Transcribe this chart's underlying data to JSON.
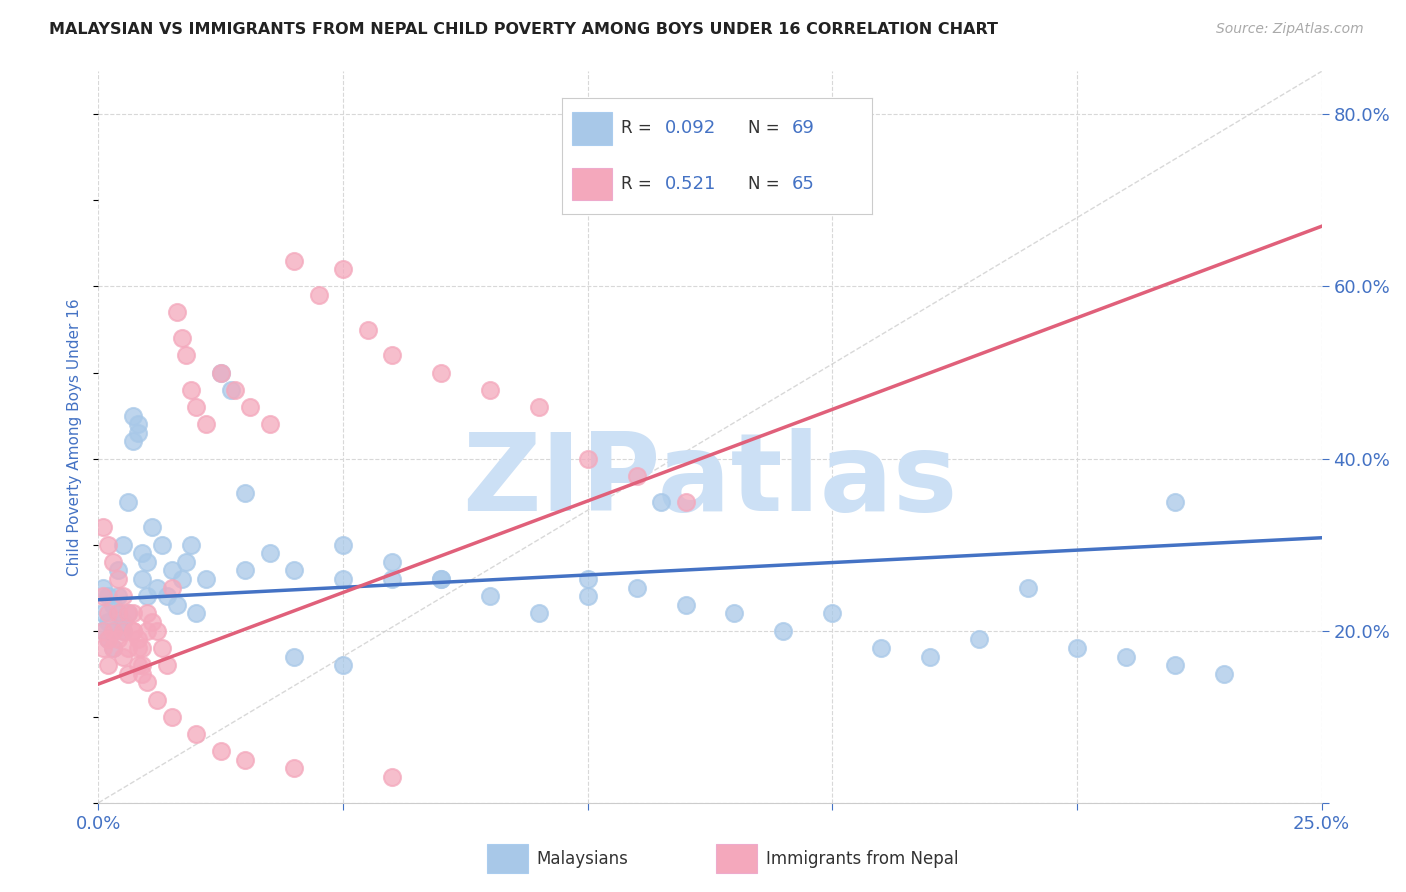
{
  "title": "MALAYSIAN VS IMMIGRANTS FROM NEPAL CHILD POVERTY AMONG BOYS UNDER 16 CORRELATION CHART",
  "source": "Source: ZipAtlas.com",
  "ylabel": "Child Poverty Among Boys Under 16",
  "xlim": [
    0.0,
    0.25
  ],
  "ylim": [
    0.0,
    0.85
  ],
  "ytick_vals": [
    0.0,
    0.2,
    0.4,
    0.6,
    0.8
  ],
  "xtick_vals": [
    0.0,
    0.05,
    0.1,
    0.15,
    0.2,
    0.25
  ],
  "title_color": "#222222",
  "source_color": "#aaaaaa",
  "blue_color": "#a8c8e8",
  "pink_color": "#f4a8bc",
  "blue_line": "#4472c4",
  "pink_line": "#e0607a",
  "grid_color": "#d8d8d8",
  "tick_color": "#4472c4",
  "watermark_color": "#cce0f5",
  "mal_x": [
    0.001,
    0.001,
    0.001,
    0.002,
    0.002,
    0.002,
    0.003,
    0.003,
    0.003,
    0.004,
    0.004,
    0.004,
    0.005,
    0.005,
    0.005,
    0.006,
    0.006,
    0.007,
    0.007,
    0.008,
    0.008,
    0.009,
    0.009,
    0.01,
    0.01,
    0.011,
    0.012,
    0.013,
    0.014,
    0.015,
    0.016,
    0.017,
    0.018,
    0.019,
    0.02,
    0.022,
    0.025,
    0.027,
    0.03,
    0.035,
    0.04,
    0.05,
    0.06,
    0.07,
    0.08,
    0.09,
    0.1,
    0.11,
    0.12,
    0.13,
    0.14,
    0.15,
    0.16,
    0.17,
    0.18,
    0.19,
    0.2,
    0.21,
    0.22,
    0.23,
    0.03,
    0.04,
    0.05,
    0.06,
    0.07,
    0.1,
    0.115,
    0.22,
    0.05
  ],
  "mal_y": [
    0.25,
    0.22,
    0.2,
    0.24,
    0.21,
    0.19,
    0.23,
    0.2,
    0.18,
    0.22,
    0.24,
    0.27,
    0.2,
    0.21,
    0.3,
    0.22,
    0.35,
    0.42,
    0.45,
    0.44,
    0.43,
    0.26,
    0.29,
    0.28,
    0.24,
    0.32,
    0.25,
    0.3,
    0.24,
    0.27,
    0.23,
    0.26,
    0.28,
    0.3,
    0.22,
    0.26,
    0.5,
    0.48,
    0.36,
    0.29,
    0.27,
    0.3,
    0.28,
    0.26,
    0.24,
    0.22,
    0.24,
    0.25,
    0.23,
    0.22,
    0.2,
    0.22,
    0.18,
    0.17,
    0.19,
    0.25,
    0.18,
    0.17,
    0.16,
    0.15,
    0.27,
    0.17,
    0.26,
    0.26,
    0.26,
    0.26,
    0.35,
    0.35,
    0.16
  ],
  "nep_x": [
    0.001,
    0.001,
    0.001,
    0.002,
    0.002,
    0.002,
    0.003,
    0.003,
    0.004,
    0.004,
    0.005,
    0.005,
    0.006,
    0.006,
    0.007,
    0.007,
    0.008,
    0.008,
    0.009,
    0.009,
    0.01,
    0.01,
    0.011,
    0.012,
    0.013,
    0.014,
    0.015,
    0.016,
    0.017,
    0.018,
    0.019,
    0.02,
    0.022,
    0.025,
    0.028,
    0.031,
    0.035,
    0.04,
    0.045,
    0.05,
    0.055,
    0.06,
    0.07,
    0.08,
    0.09,
    0.1,
    0.11,
    0.12,
    0.001,
    0.002,
    0.003,
    0.004,
    0.005,
    0.006,
    0.007,
    0.008,
    0.009,
    0.01,
    0.012,
    0.015,
    0.02,
    0.025,
    0.03,
    0.04,
    0.06
  ],
  "nep_y": [
    0.24,
    0.2,
    0.18,
    0.22,
    0.19,
    0.16,
    0.2,
    0.18,
    0.22,
    0.19,
    0.2,
    0.17,
    0.18,
    0.15,
    0.22,
    0.2,
    0.19,
    0.16,
    0.18,
    0.15,
    0.22,
    0.2,
    0.21,
    0.2,
    0.18,
    0.16,
    0.25,
    0.57,
    0.54,
    0.52,
    0.48,
    0.46,
    0.44,
    0.5,
    0.48,
    0.46,
    0.44,
    0.63,
    0.59,
    0.62,
    0.55,
    0.52,
    0.5,
    0.48,
    0.46,
    0.4,
    0.38,
    0.35,
    0.32,
    0.3,
    0.28,
    0.26,
    0.24,
    0.22,
    0.2,
    0.18,
    0.16,
    0.14,
    0.12,
    0.1,
    0.08,
    0.06,
    0.05,
    0.04,
    0.03
  ]
}
